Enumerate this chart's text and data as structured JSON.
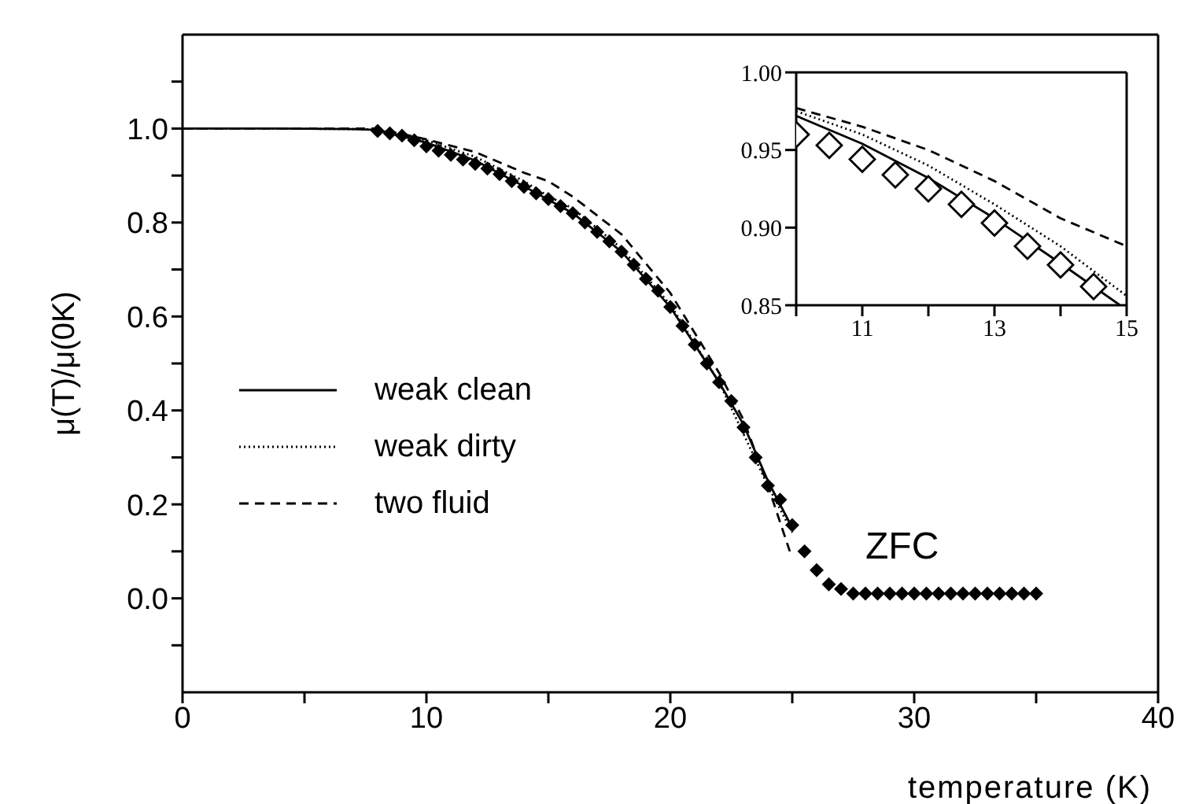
{
  "chart_data": [
    {
      "type": "line",
      "xlabel": "temperature (K)",
      "ylabel": "μ(T)/μ(0K)",
      "xlim": [
        0,
        40
      ],
      "ylim": [
        -0.2,
        1.2
      ],
      "xticks": [
        0,
        {
          "value": 5,
          "label": null
        },
        10,
        {
          "value": 15,
          "label": null
        },
        20,
        {
          "value": 25,
          "label": null
        },
        30,
        {
          "value": 35,
          "label": null
        },
        40
      ],
      "yticks": [
        {
          "value": -0.1,
          "label": null
        },
        {
          "value": 0,
          "label": "0.0"
        },
        {
          "value": 0.1,
          "label": null
        },
        {
          "value": 0.2,
          "label": "0.2"
        },
        {
          "value": 0.3,
          "label": null
        },
        {
          "value": 0.4,
          "label": "0.4"
        },
        {
          "value": 0.5,
          "label": null
        },
        {
          "value": 0.6,
          "label": "0.6"
        },
        {
          "value": 0.7,
          "label": null
        },
        {
          "value": 0.8,
          "label": "0.8"
        },
        {
          "value": 0.9,
          "label": null
        },
        {
          "value": 1,
          "label": "1.0"
        },
        {
          "value": 1.1,
          "label": null
        }
      ],
      "grid": false,
      "legend": "left",
      "annotations": [
        "ZFC"
      ],
      "series": [
        {
          "name": "weak clean",
          "line_style": "solid",
          "marker": "none",
          "color": "#000000",
          "x": [
            0,
            4,
            7,
            8,
            10,
            12,
            14,
            16,
            18,
            20,
            22,
            23,
            24,
            25
          ],
          "values": [
            1,
            1,
            0.999,
            0.997,
            0.97,
            0.932,
            0.877,
            0.82,
            0.738,
            0.62,
            0.46,
            0.37,
            0.25,
            0.15
          ]
        },
        {
          "name": "weak dirty",
          "line_style": "dotted",
          "marker": "none",
          "color": "#000000",
          "x": [
            0,
            4,
            7,
            8,
            10,
            12,
            14,
            15,
            16,
            18,
            20,
            22,
            24,
            25
          ],
          "values": [
            1,
            1,
            0.999,
            0.998,
            0.975,
            0.94,
            0.888,
            0.856,
            0.83,
            0.745,
            0.625,
            0.46,
            0.24,
            0.14
          ]
        },
        {
          "name": "two fluid",
          "line_style": "dashed",
          "marker": "none",
          "color": "#000000",
          "x": [
            0,
            4,
            8,
            10,
            12,
            14,
            15,
            16,
            18,
            20,
            22,
            23,
            24,
            24.9
          ],
          "values": [
            1,
            1,
            1,
            0.977,
            0.95,
            0.906,
            0.888,
            0.855,
            0.775,
            0.65,
            0.48,
            0.38,
            0.24,
            0.1
          ]
        },
        {
          "type": "scatter",
          "marker": "diamond",
          "color": "#000000",
          "x": [
            8,
            8.5,
            9,
            9.5,
            10,
            10.5,
            11,
            11.5,
            12,
            12.5,
            13,
            13.5,
            14,
            14.5,
            15,
            15.5,
            16,
            16.5,
            17,
            17.5,
            18,
            18.5,
            19,
            19.5,
            20,
            20.5,
            21,
            21.5,
            22,
            22.5,
            23,
            23.5,
            24,
            24.5,
            25,
            25.5,
            26,
            26.5,
            27,
            27.5,
            28,
            28.5,
            29,
            29.5,
            30,
            30.5,
            31,
            31.5,
            32,
            32.5,
            33,
            33.5,
            34,
            34.5,
            35
          ],
          "values": [
            0.995,
            0.99,
            0.985,
            0.975,
            0.962,
            0.953,
            0.944,
            0.934,
            0.925,
            0.915,
            0.903,
            0.888,
            0.876,
            0.862,
            0.85,
            0.835,
            0.82,
            0.8,
            0.78,
            0.76,
            0.738,
            0.71,
            0.68,
            0.655,
            0.62,
            0.58,
            0.54,
            0.5,
            0.46,
            0.42,
            0.364,
            0.3,
            0.24,
            0.21,
            0.156,
            0.1,
            0.06,
            0.03,
            0.02,
            0.01,
            0.01,
            0.01,
            0.01,
            0.01,
            0.01,
            0.01,
            0.01,
            0.01,
            0.01,
            0.01,
            0.01,
            0.01,
            0.01,
            0.01,
            0.01
          ]
        }
      ]
    },
    {
      "type": "line",
      "xlim": [
        10,
        15
      ],
      "ylim": [
        0.85,
        1.0
      ],
      "xticks": [
        {
          "value": 10,
          "label": null
        },
        11,
        {
          "value": 12,
          "label": null
        },
        13,
        {
          "value": 14,
          "label": null
        },
        15
      ],
      "yticks": [
        {
          "value": 0.85,
          "label": "0.85"
        },
        {
          "value": 0.9,
          "label": "0.90"
        },
        {
          "value": 0.95,
          "label": "0.95"
        },
        {
          "value": 1.0,
          "label": "1.00"
        }
      ],
      "grid": false,
      "series": [
        {
          "line_style": "solid",
          "marker": "none",
          "color": "#000000",
          "x": [
            10,
            11,
            12,
            13,
            14,
            14.9
          ],
          "values": [
            0.972,
            0.954,
            0.932,
            0.906,
            0.877,
            0.85
          ]
        },
        {
          "line_style": "dotted",
          "marker": "none",
          "color": "#000000",
          "x": [
            10,
            11,
            12,
            13,
            14,
            15
          ],
          "values": [
            0.975,
            0.96,
            0.94,
            0.915,
            0.888,
            0.856
          ]
        },
        {
          "line_style": "dashed",
          "marker": "none",
          "color": "#000000",
          "x": [
            10,
            11,
            12,
            13,
            14,
            15
          ],
          "values": [
            0.977,
            0.965,
            0.95,
            0.93,
            0.906,
            0.888
          ]
        },
        {
          "type": "scatter",
          "marker": "diamond",
          "color": "#000000",
          "x": [
            10,
            10.5,
            11,
            11.5,
            12,
            12.5,
            13,
            13.5,
            14,
            14.5
          ],
          "values": [
            0.96,
            0.953,
            0.944,
            0.934,
            0.925,
            0.915,
            0.903,
            0.888,
            0.876,
            0.862
          ]
        }
      ]
    }
  ]
}
